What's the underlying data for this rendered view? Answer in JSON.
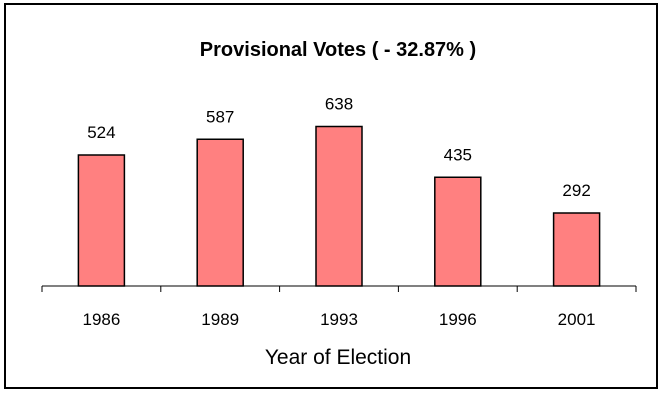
{
  "chart_data": {
    "type": "bar",
    "title": "Provisional Votes ( - 32.87% )",
    "xlabel": "Year of Election",
    "ylabel": "",
    "categories": [
      "1986",
      "1989",
      "1993",
      "1996",
      "2001"
    ],
    "values": [
      524,
      587,
      638,
      435,
      292
    ],
    "data_labels": [
      "524",
      "587",
      "638",
      "435",
      "292"
    ],
    "ylim": [
      0,
      800
    ],
    "grid": false,
    "legend": "none",
    "bar_color": "#ff8080",
    "bar_edge_color": "#000000"
  }
}
